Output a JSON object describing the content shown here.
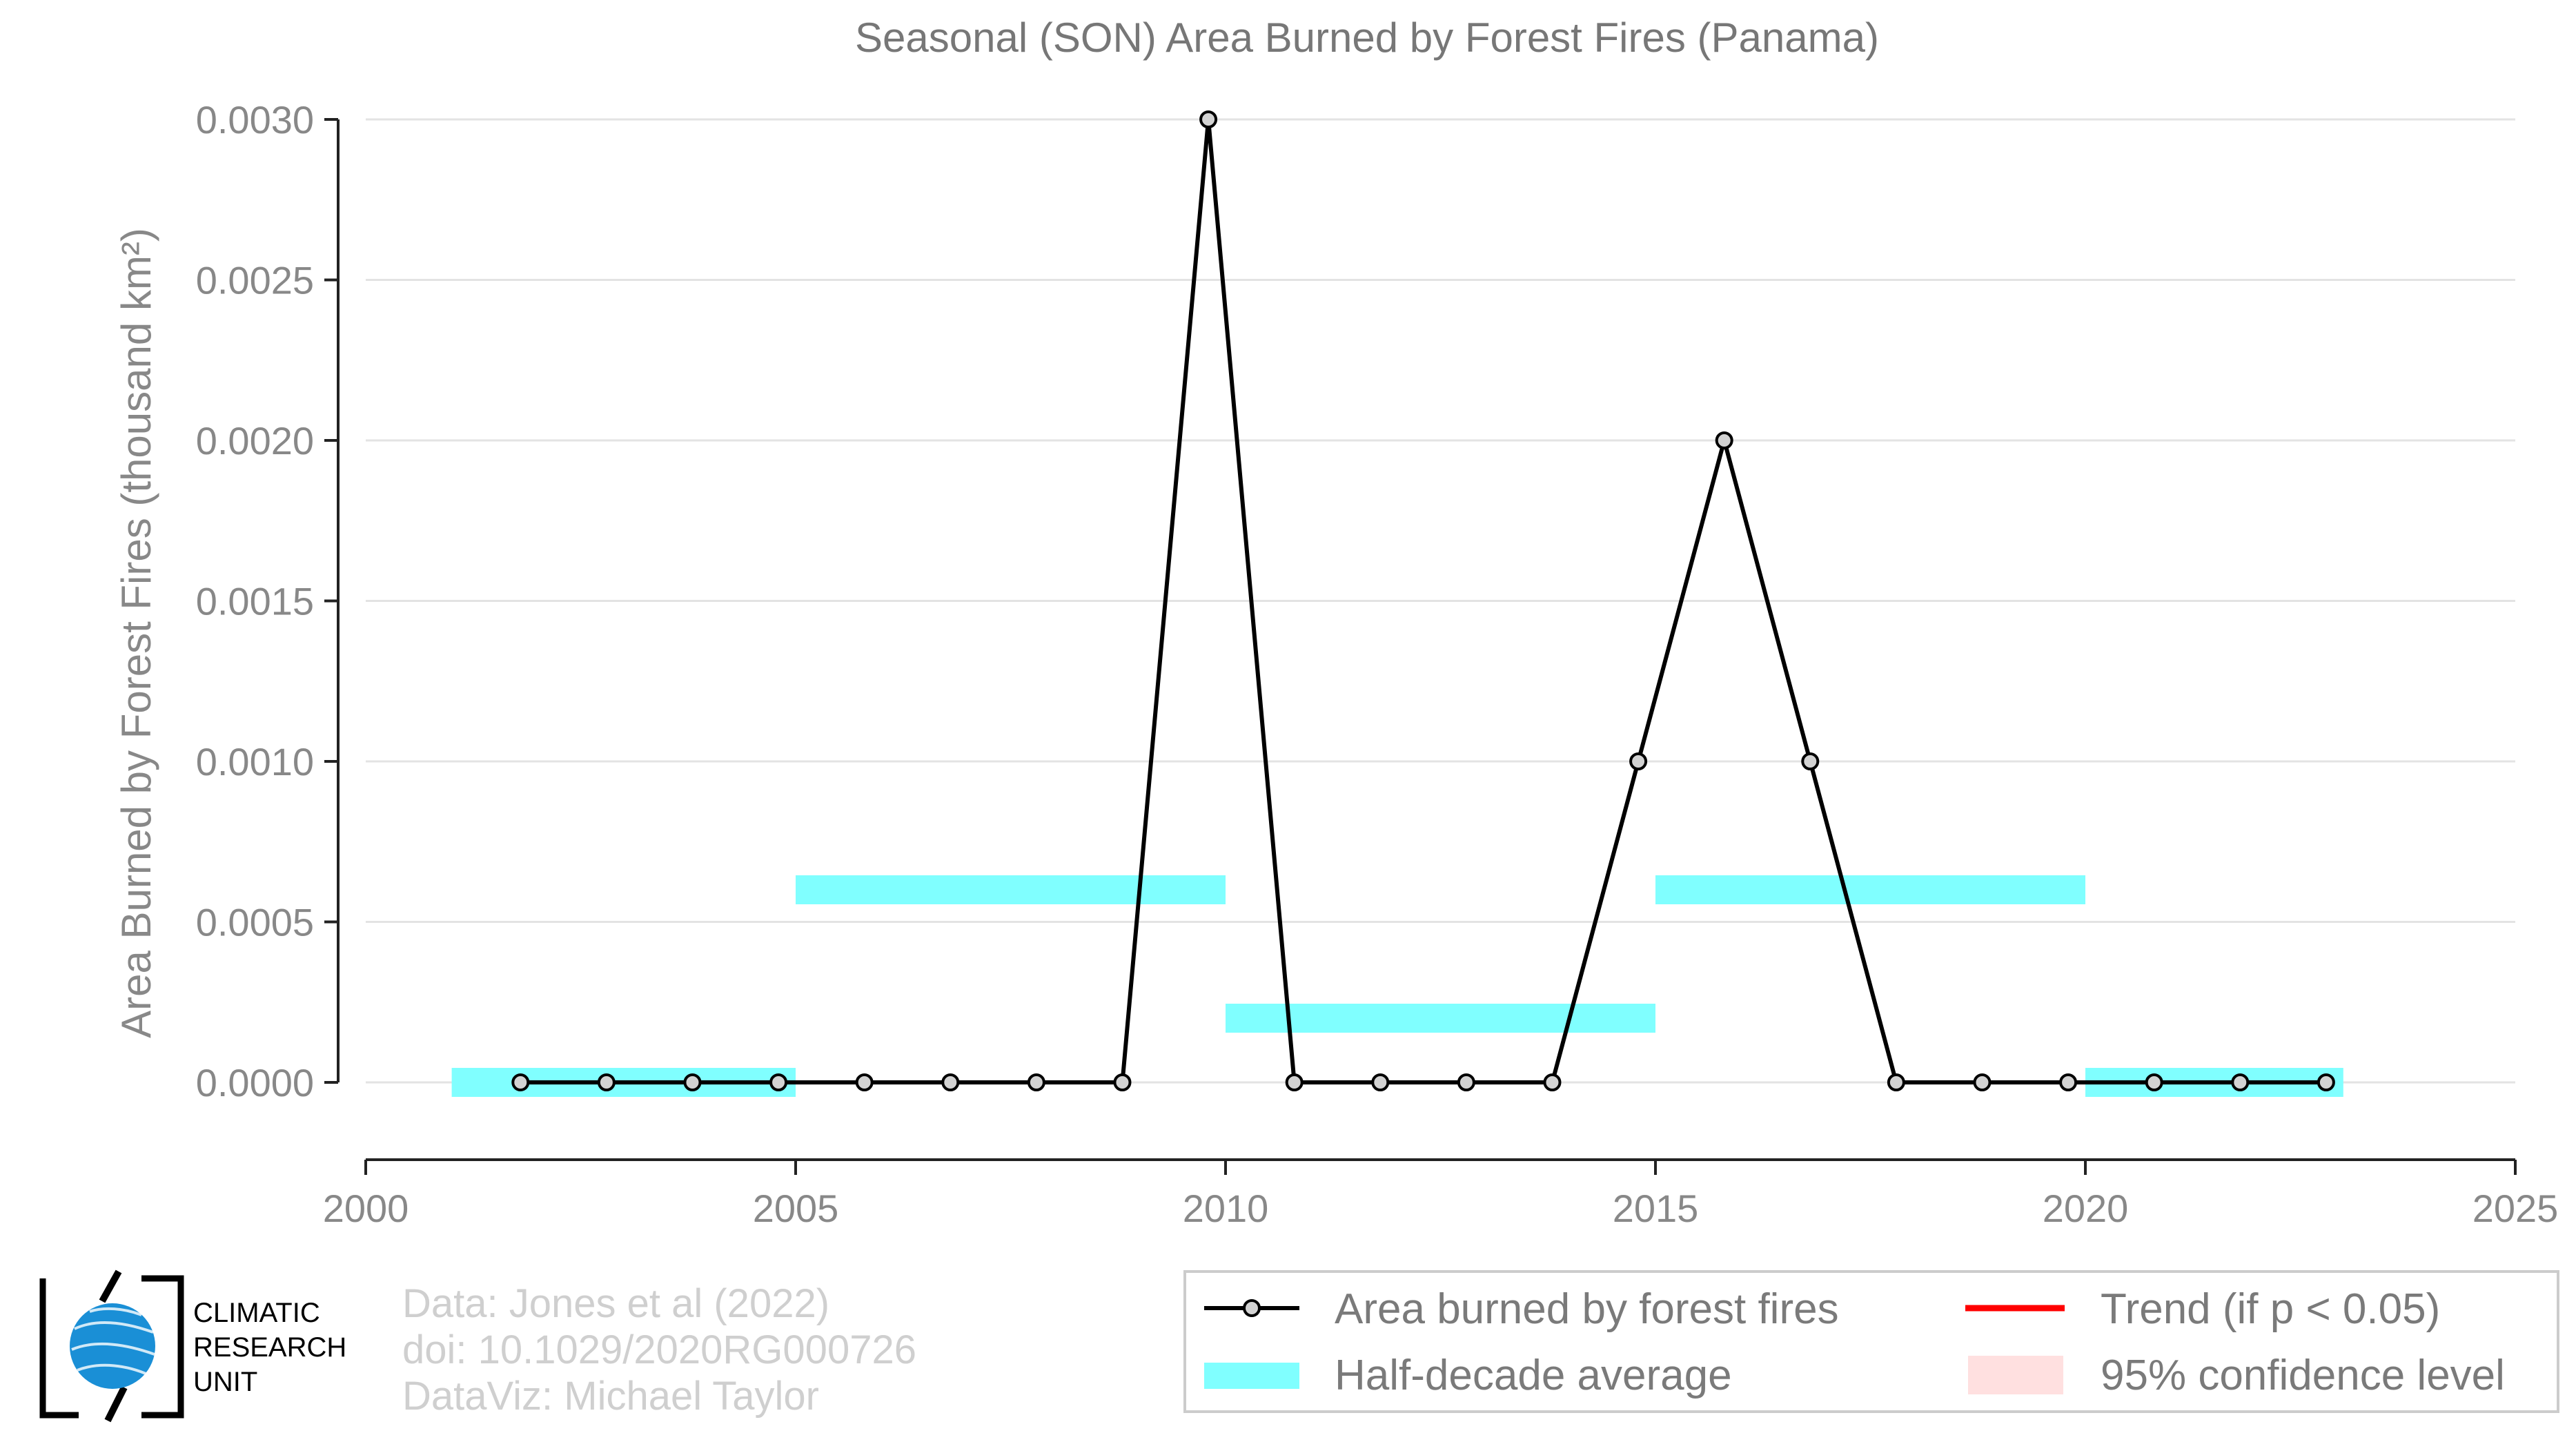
{
  "chart_data": {
    "type": "line",
    "title": "Seasonal (SON) Area Burned by Forest Fires (Panama)",
    "ylabel": "Area Burned by Forest Fires (thousand km²)",
    "xlabel": "",
    "xlim": [
      2000,
      2025
    ],
    "ylim": [
      -0.00024,
      0.003
    ],
    "xticks": [
      2000,
      2005,
      2010,
      2015,
      2020,
      2025
    ],
    "yticks": [
      "0.0000",
      "0.0005",
      "0.0010",
      "0.0015",
      "0.0020",
      "0.0025",
      "0.0030"
    ],
    "grid": "horizontal",
    "series": [
      {
        "name": "Area burned by forest fires",
        "color": "#000000",
        "x": [
          2001.8,
          2002.8,
          2003.8,
          2004.8,
          2005.8,
          2006.8,
          2007.8,
          2008.8,
          2009.8,
          2010.8,
          2011.8,
          2012.8,
          2013.8,
          2014.8,
          2015.8,
          2016.8,
          2017.8,
          2018.8,
          2019.8,
          2020.8,
          2021.8,
          2022.8
        ],
        "y": [
          0,
          0,
          0,
          0,
          0,
          0,
          0,
          0,
          0.003,
          0,
          0,
          0,
          0,
          0.001,
          0.002,
          0.001,
          0,
          0,
          0,
          0,
          0,
          0
        ]
      }
    ],
    "half_decade_average": {
      "name": "Half-decade average",
      "color": "#80ffff",
      "segments": [
        {
          "x0": 2001,
          "x1": 2005,
          "y": 0
        },
        {
          "x0": 2005,
          "x1": 2010,
          "y": 0.0006
        },
        {
          "x0": 2010,
          "x1": 2015,
          "y": 0.0002
        },
        {
          "x0": 2015,
          "x1": 2020,
          "y": 0.0006
        },
        {
          "x0": 2020,
          "x1": 2023,
          "y": 0
        }
      ]
    },
    "legend": {
      "placement": "bottom-right",
      "items": [
        {
          "label": "Area burned by forest fires",
          "kind": "line-point",
          "color": "#000000"
        },
        {
          "label": "Trend (if p < 0.05)",
          "kind": "line",
          "color": "#ff0000"
        },
        {
          "label": "Half-decade average",
          "kind": "band",
          "color": "#80ffff"
        },
        {
          "label": "95% confidence level",
          "kind": "fill",
          "color": "#ffe0e0"
        }
      ]
    }
  },
  "credits": {
    "lines": [
      "Data: Jones et al (2022)",
      "doi: 10.1029/2020RG000726",
      "DataViz: Michael Taylor"
    ]
  },
  "logo": {
    "lines": [
      "CLIMATIC",
      "RESEARCH",
      "UNIT"
    ],
    "color": "#1a8fd6"
  }
}
